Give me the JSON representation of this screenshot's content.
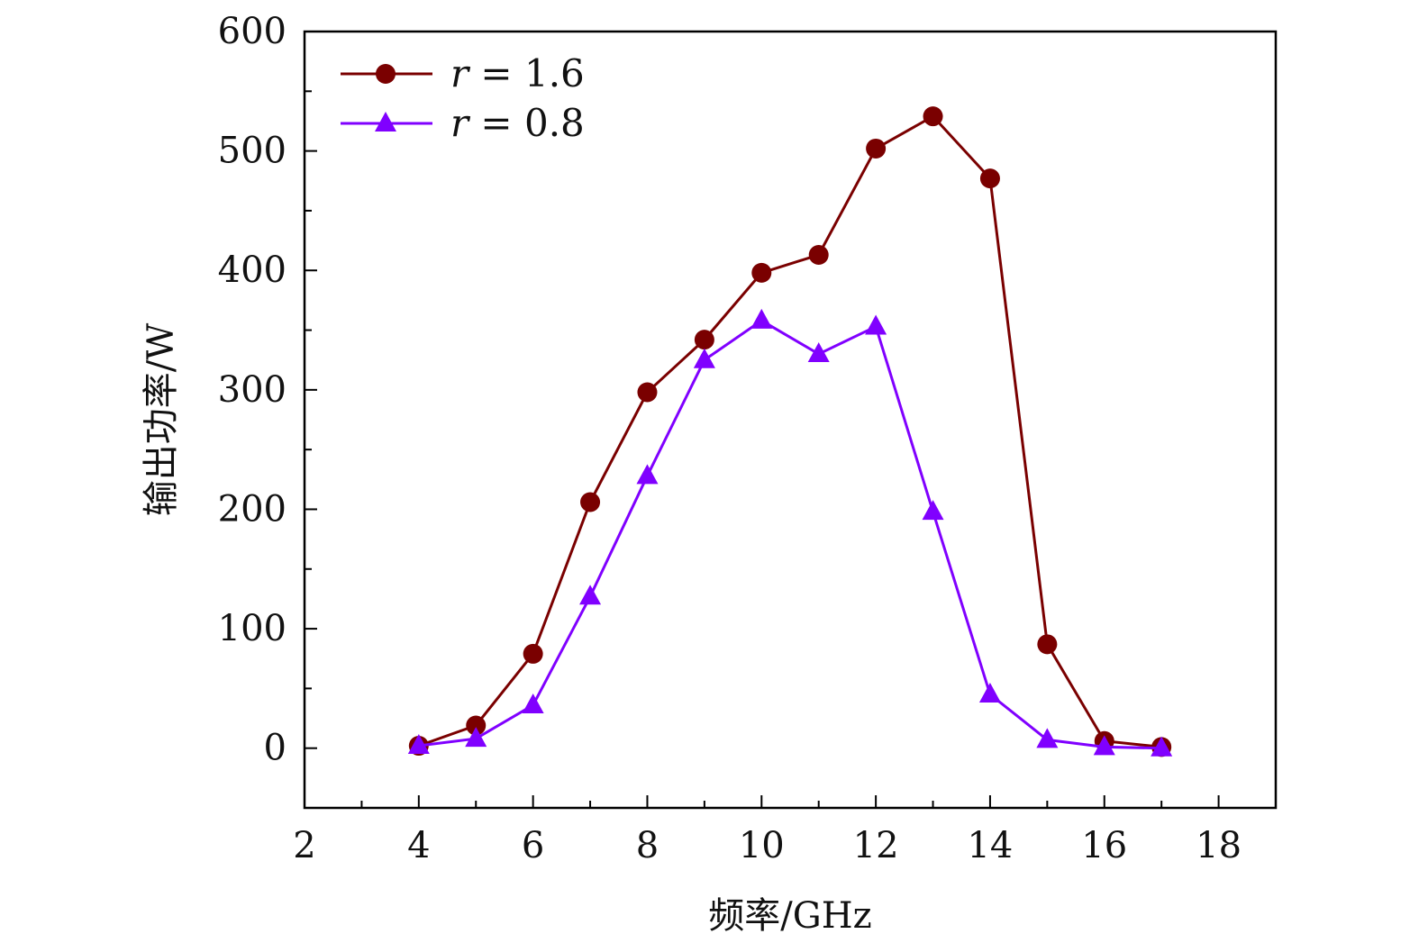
{
  "chart_data": {
    "type": "line",
    "title": "",
    "xlabel": "频率/GHz",
    "ylabel": "输出功率/W",
    "xlim": [
      2,
      19
    ],
    "ylim": [
      -50,
      600
    ],
    "xticks": [
      2,
      4,
      6,
      8,
      10,
      12,
      14,
      16,
      18
    ],
    "yticks": [
      0,
      100,
      200,
      300,
      400,
      500,
      600
    ],
    "xtick_labels": [
      "2",
      "4",
      "6",
      "8",
      "10",
      "12",
      "14",
      "16",
      "18"
    ],
    "ytick_labels": [
      "0",
      "100",
      "200",
      "300",
      "400",
      "500",
      "600"
    ],
    "grid": false,
    "legend_position": "top-left",
    "x": [
      4,
      5,
      6,
      7,
      8,
      9,
      10,
      11,
      12,
      13,
      14,
      15,
      16,
      17
    ],
    "series": [
      {
        "name": "r = 1.6",
        "var": "r",
        "eq": "= 1.6",
        "color": "#7a0000",
        "marker": "circle",
        "values": [
          2,
          19,
          79,
          206,
          298,
          342,
          398,
          413,
          502,
          529,
          477,
          87,
          6,
          1
        ]
      },
      {
        "name": "r = 0.8",
        "var": "r",
        "eq": "= 0.8",
        "color": "#8000ff",
        "marker": "triangle",
        "values": [
          2,
          8,
          36,
          127,
          228,
          325,
          358,
          330,
          353,
          198,
          45,
          7,
          1,
          0
        ]
      }
    ]
  }
}
